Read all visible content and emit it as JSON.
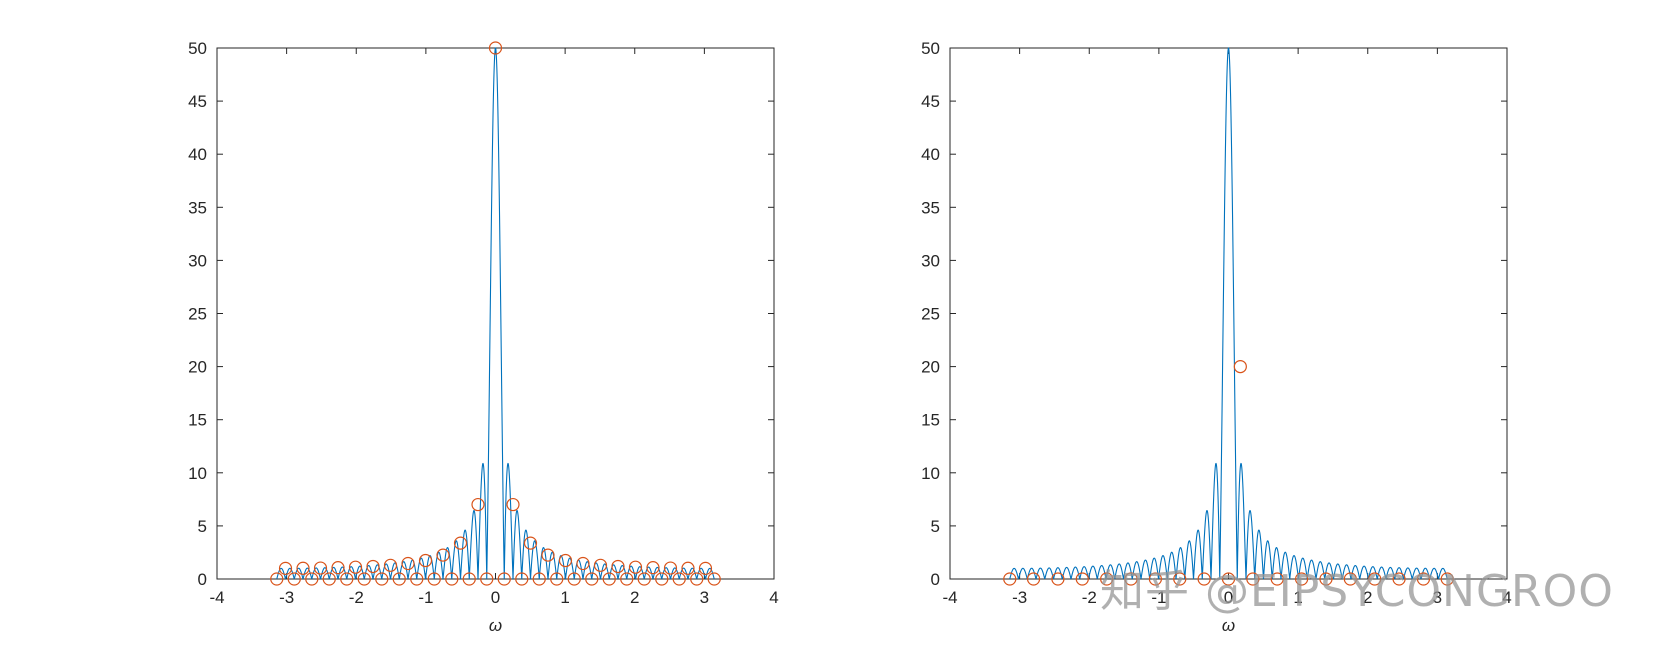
{
  "watermark": "知乎 @EIPSYCONGROO",
  "colors": {
    "line": "#0072BD",
    "marker": "#D95319",
    "axes": "#262626",
    "background": "#ffffff"
  },
  "chart_data": [
    {
      "type": "line",
      "title": "",
      "xlabel": "ω",
      "ylabel": "",
      "xlim": [
        -4,
        4
      ],
      "ylim": [
        0,
        50
      ],
      "xticks": [
        -4,
        -3,
        -2,
        -1,
        0,
        1,
        2,
        3,
        4
      ],
      "yticks": [
        0,
        5,
        10,
        15,
        20,
        25,
        30,
        35,
        40,
        45,
        50
      ],
      "grid": false,
      "box": true,
      "series": [
        {
          "kind": "line",
          "description_formula": "|sin(50w/2)/sin(w/2)|",
          "x_range": [
            -3.1416,
            3.1416
          ],
          "N": 50
        },
        {
          "kind": "markers",
          "marker": "circle",
          "x": [
            -3.1416,
            -3.0159,
            -2.8903,
            -2.7646,
            -2.6389,
            -2.5133,
            -2.3876,
            -2.2619,
            -2.1363,
            -2.0106,
            -1.885,
            -1.7593,
            -1.6336,
            -1.508,
            -1.3823,
            -1.2566,
            -1.131,
            -1.0053,
            -0.8796,
            -0.754,
            -0.6283,
            -0.5027,
            -0.377,
            -0.2513,
            -0.1257,
            0,
            0.1257,
            0.2513,
            0.377,
            0.5027,
            0.6283,
            0.754,
            0.8796,
            1.0053,
            1.131,
            1.2566,
            1.3823,
            1.508,
            1.6336,
            1.7593,
            1.885,
            2.0106,
            2.1363,
            2.2619,
            2.3876,
            2.5133,
            2.6389,
            2.7646,
            2.8903,
            3.0159,
            3.1416
          ],
          "y": [
            0.0,
            1.0,
            0.0,
            1.01,
            0.0,
            1.03,
            0.0,
            1.07,
            0.0,
            1.11,
            0.0,
            1.18,
            0.0,
            1.29,
            0.0,
            1.46,
            0.0,
            1.74,
            0.0,
            2.25,
            0.0,
            3.38,
            0.0,
            7.01,
            0.0,
            50,
            0.0,
            7.01,
            0.0,
            3.38,
            0.0,
            2.25,
            0.0,
            1.74,
            0.0,
            1.46,
            0.0,
            1.29,
            0.0,
            1.18,
            0.0,
            1.11,
            0.0,
            1.07,
            0.0,
            1.03,
            0.0,
            1.01,
            0.0,
            1.0,
            0.0
          ]
        }
      ]
    },
    {
      "type": "line",
      "title": "",
      "xlabel": "ω",
      "ylabel": "",
      "xlim": [
        -4,
        4
      ],
      "ylim": [
        0,
        50
      ],
      "xticks": [
        -4,
        -3,
        -2,
        -1,
        0,
        1,
        2,
        3,
        4
      ],
      "yticks": [
        0,
        5,
        10,
        15,
        20,
        25,
        30,
        35,
        40,
        45,
        50
      ],
      "grid": false,
      "box": true,
      "series": [
        {
          "kind": "line",
          "description_formula": "|sin(50w/2)/sin(w/2)|",
          "x_range": [
            -3.1416,
            3.1416
          ],
          "N": 50
        },
        {
          "kind": "markers",
          "marker": "circle",
          "x": [
            -3.1416,
            -2.8,
            -2.45,
            -2.1,
            -1.75,
            -1.4,
            -1.05,
            -0.7,
            -0.35,
            0,
            0.17,
            0.35,
            0.7,
            1.05,
            1.4,
            1.75,
            2.1,
            2.45,
            2.8,
            3.1416
          ],
          "y": [
            0,
            0,
            0,
            0,
            0,
            0,
            0,
            0,
            0,
            0,
            20,
            0,
            0,
            0,
            0,
            0,
            0,
            0,
            0,
            0
          ]
        }
      ]
    }
  ]
}
